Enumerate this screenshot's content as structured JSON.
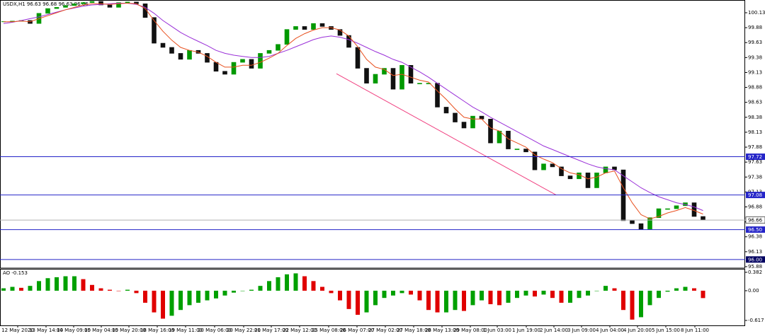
{
  "chart_data": [
    {
      "type": "candlestick",
      "title": "USDX,H1 96.63 96.68 96.63 96.66",
      "xlim": [
        -0.4,
        83.76
      ],
      "ylim": [
        95.856,
        100.343
      ],
      "yticks": [
        100.13,
        99.88,
        99.63,
        99.38,
        99.13,
        98.88,
        98.63,
        98.38,
        98.13,
        97.88,
        97.63,
        97.38,
        97.13,
        96.88,
        96.63,
        96.38,
        96.13,
        95.88
      ],
      "up_color": "#009900",
      "down_color": "#111111",
      "close": [
        99.98,
        99.99,
        100.0,
        99.95,
        100.12,
        100.2,
        100.22,
        100.25,
        100.28,
        100.3,
        100.32,
        100.26,
        100.22,
        100.3,
        100.31,
        100.28,
        100.05,
        99.62,
        99.55,
        99.45,
        99.35,
        99.5,
        99.45,
        99.3,
        99.15,
        99.1,
        99.3,
        99.35,
        99.2,
        99.45,
        99.5,
        99.6,
        99.85,
        99.9,
        99.85,
        99.95,
        99.9,
        99.85,
        99.75,
        99.55,
        99.2,
        98.95,
        99.1,
        99.2,
        98.85,
        99.25,
        98.95,
        98.95,
        98.95,
        98.55,
        98.45,
        98.3,
        98.2,
        98.4,
        98.35,
        97.95,
        98.15,
        97.85,
        97.85,
        97.8,
        97.5,
        97.6,
        97.55,
        97.4,
        97.35,
        97.45,
        97.2,
        97.45,
        97.55,
        97.5,
        96.65,
        96.6,
        96.5,
        96.7,
        96.85,
        96.85,
        96.9,
        96.95,
        96.72,
        96.66
      ],
      "ma_fast": {
        "color": "#e8501e",
        "values": [
          99.98,
          99.98,
          99.99,
          99.98,
          100.03,
          100.08,
          100.13,
          100.18,
          100.22,
          100.26,
          100.28,
          100.28,
          100.27,
          100.28,
          100.29,
          100.28,
          100.2,
          100.0,
          99.82,
          99.67,
          99.55,
          99.5,
          99.47,
          99.4,
          99.3,
          99.22,
          99.22,
          99.25,
          99.25,
          99.3,
          99.37,
          99.45,
          99.58,
          99.7,
          99.78,
          99.84,
          99.88,
          99.88,
          99.84,
          99.74,
          99.56,
          99.35,
          99.22,
          99.18,
          99.08,
          99.1,
          99.05,
          99.0,
          98.97,
          98.82,
          98.68,
          98.52,
          98.38,
          98.35,
          98.35,
          98.2,
          98.15,
          98.02,
          97.95,
          97.88,
          97.75,
          97.68,
          97.62,
          97.52,
          97.45,
          97.42,
          97.35,
          97.38,
          97.45,
          97.48,
          97.2,
          96.95,
          96.75,
          96.68,
          96.72,
          96.78,
          96.82,
          96.87,
          96.82,
          96.76
        ]
      },
      "ma_slow": {
        "color": "#9a30d8",
        "values": [
          99.95,
          99.97,
          100.0,
          100.03,
          100.06,
          100.1,
          100.14,
          100.18,
          100.21,
          100.24,
          100.26,
          100.27,
          100.28,
          100.29,
          100.29,
          100.27,
          100.22,
          100.12,
          100.0,
          99.9,
          99.8,
          99.72,
          99.65,
          99.58,
          99.5,
          99.45,
          99.42,
          99.4,
          99.38,
          99.38,
          99.4,
          99.45,
          99.5,
          99.56,
          99.62,
          99.68,
          99.72,
          99.74,
          99.72,
          99.68,
          99.62,
          99.55,
          99.48,
          99.42,
          99.35,
          99.3,
          99.22,
          99.14,
          99.05,
          98.95,
          98.85,
          98.75,
          98.65,
          98.55,
          98.47,
          98.38,
          98.3,
          98.22,
          98.14,
          98.06,
          97.98,
          97.9,
          97.84,
          97.78,
          97.72,
          97.66,
          97.6,
          97.55,
          97.52,
          97.5,
          97.4,
          97.3,
          97.2,
          97.12,
          97.05,
          97.0,
          96.95,
          96.92,
          96.88,
          96.82
        ]
      },
      "trendline": {
        "color": "#f04080",
        "x": [
          37.6,
          62.4
        ],
        "values": [
          99.11,
          97.08
        ]
      },
      "levels": [
        97.72,
        97.08,
        {
          "value": 96.5,
          "label": "96.50"
        },
        {
          "value": 96,
          "label": "96.00"
        }
      ],
      "level_color": "#2424c8",
      "last_price": 96.66
    },
    {
      "type": "bar",
      "title": "AO -0.153",
      "xlim": [
        -0.4,
        83.76
      ],
      "ylim": [
        -0.72,
        0.44
      ],
      "yticks": [
        0.382,
        {
          "value": 0,
          "label": "0.00"
        },
        -0.617
      ],
      "up_color": "#00a000",
      "down_color": "#e00000",
      "values": [
        0.05,
        0.08,
        0.06,
        0.1,
        0.2,
        0.26,
        0.28,
        0.3,
        0.3,
        0.24,
        0.12,
        0.05,
        0.02,
        0.0,
        0.02,
        -0.05,
        -0.25,
        -0.45,
        -0.58,
        -0.52,
        -0.4,
        -0.3,
        -0.25,
        -0.2,
        -0.16,
        -0.1,
        -0.04,
        0.0,
        0.02,
        0.1,
        0.2,
        0.28,
        0.34,
        0.36,
        0.3,
        0.2,
        0.08,
        -0.05,
        -0.2,
        -0.38,
        -0.5,
        -0.45,
        -0.3,
        -0.15,
        -0.1,
        -0.05,
        -0.08,
        -0.2,
        -0.4,
        -0.45,
        -0.45,
        -0.4,
        -0.42,
        -0.3,
        -0.2,
        -0.28,
        -0.3,
        -0.25,
        -0.15,
        -0.1,
        -0.12,
        -0.08,
        -0.15,
        -0.25,
        -0.25,
        -0.15,
        -0.1,
        0.0,
        0.1,
        0.05,
        -0.4,
        -0.6,
        -0.55,
        -0.3,
        -0.15,
        -0.02,
        0.05,
        0.08,
        0.05,
        -0.153
      ],
      "xticks": [
        {
          "value": 1.6,
          "label": "12 May 2020"
        },
        {
          "value": 4.8,
          "label": "13 May 14:00"
        },
        {
          "value": 7.92,
          "label": "14 May 09:00"
        },
        {
          "value": 11.04,
          "label": "15 May 04:00"
        },
        {
          "value": 14.16,
          "label": "15 May 20:00"
        },
        {
          "value": 17.36,
          "label": "18 May 16:00"
        },
        {
          "value": 20.56,
          "label": "19 May 11:00"
        },
        {
          "value": 23.84,
          "label": "20 May 06:00"
        },
        {
          "value": 27.12,
          "label": "20 May 22:00"
        },
        {
          "value": 30.24,
          "label": "21 May 17:00"
        },
        {
          "value": 33.44,
          "label": "22 May 12:00"
        },
        {
          "value": 36.72,
          "label": "25 May 08:00"
        },
        {
          "value": 39.92,
          "label": "26 May 07:00"
        },
        {
          "value": 43.12,
          "label": "27 May 02:00"
        },
        {
          "value": 46.32,
          "label": "27 May 18:00"
        },
        {
          "value": 49.52,
          "label": "28 May 13:00"
        },
        {
          "value": 52.72,
          "label": "29 May 08:00"
        },
        {
          "value": 55.76,
          "label": "1 Jun 03:00"
        },
        {
          "value": 59.04,
          "label": "1 Jun 19:00"
        },
        {
          "value": 62.16,
          "label": "2 Jun 14:00"
        },
        {
          "value": 65.28,
          "label": "3 Jun 09:00"
        },
        {
          "value": 68.48,
          "label": "4 Jun 04:00"
        },
        {
          "value": 71.6,
          "label": "4 Jun 20:00"
        },
        {
          "value": 74.8,
          "label": "5 Jun 15:00"
        },
        {
          "value": 78.08,
          "label": "8 Jun 11:00"
        }
      ]
    }
  ]
}
